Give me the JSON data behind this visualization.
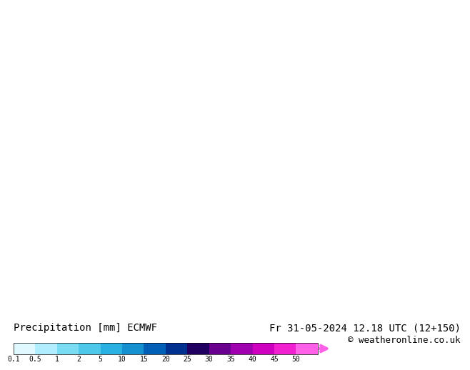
{
  "title_left": "Precipitation [mm] ECMWF",
  "title_right": "Fr 31-05-2024 12.18 UTC (12+150)",
  "copyright": "© weatheronline.co.uk",
  "colorbar_levels": [
    0.1,
    0.5,
    1,
    2,
    5,
    10,
    15,
    20,
    25,
    30,
    35,
    40,
    45,
    50
  ],
  "colorbar_colors": [
    "#e0f8ff",
    "#b0eeff",
    "#7adcf0",
    "#4ec8e8",
    "#28b0e0",
    "#1490d0",
    "#0060b8",
    "#003090",
    "#200060",
    "#6a0090",
    "#a000b0",
    "#d000c0",
    "#f020d0",
    "#ff60e8"
  ],
  "bg_color": "#ffffff",
  "map_bg": "#e8f4ff",
  "label_fontsize": 9,
  "copyright_fontsize": 8
}
